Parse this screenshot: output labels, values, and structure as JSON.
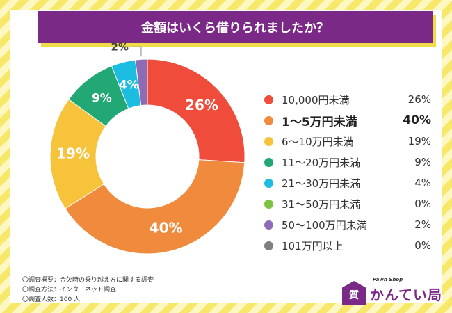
{
  "title": "金額はいくら借りられましたか？",
  "chart_data": {
    "type": "pie",
    "title": "金額はいくら借りられましたか？",
    "categories": [
      "10,000円未満",
      "1〜5万円未満",
      "6〜10万円未満",
      "11〜20万円未満",
      "21〜30万円未満",
      "31〜50万円未満",
      "50〜100万円未満",
      "101万円以上"
    ],
    "values": [
      26,
      40,
      19,
      9,
      4,
      0,
      2,
      0
    ],
    "labels": [
      "26%",
      "40%",
      "19%",
      "9%",
      "4%",
      "0%",
      "2%",
      "0%"
    ],
    "colors": [
      "#f04c3c",
      "#f08a3c",
      "#f6c33a",
      "#22a874",
      "#1cbde0",
      "#7dc242",
      "#8e6bb5",
      "#7f7f7f"
    ],
    "donut": true,
    "legend_position": "right",
    "highlight_index": 1
  },
  "notes": [
    "〇調査概要：金欠時の乗り越え方に関する調査",
    "〇調査方法：インターネット調査",
    "〇調査人数：100 人"
  ],
  "logo": {
    "text": "かんてい局",
    "sub": "Pawn Shop",
    "badge": "質"
  }
}
